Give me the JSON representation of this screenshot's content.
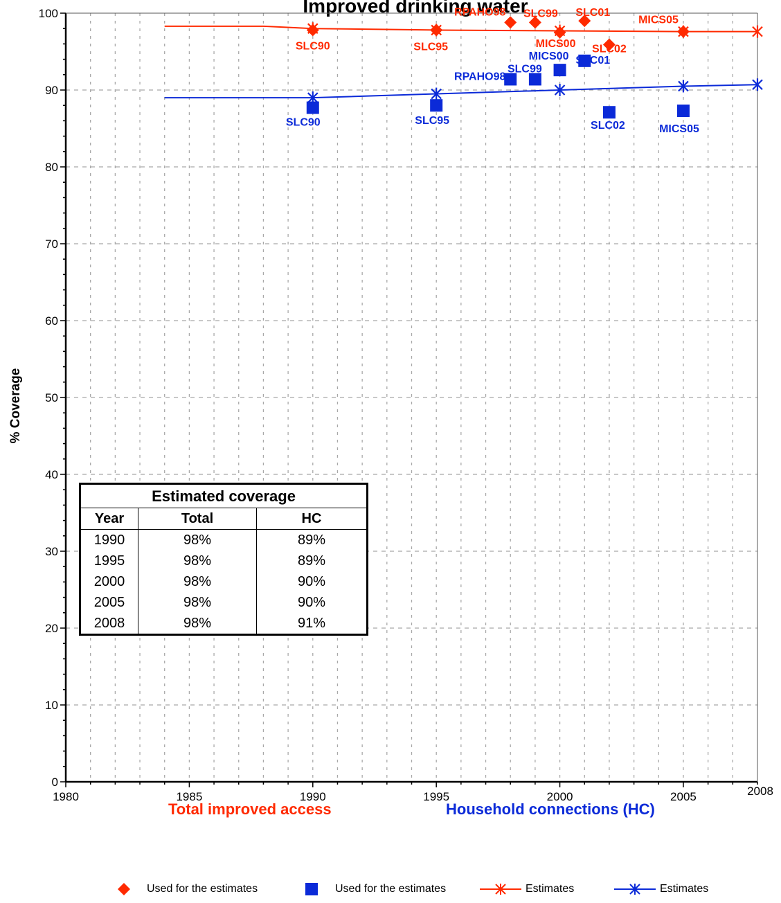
{
  "chart_data": {
    "type": "scatter",
    "title": "Improved drinking water",
    "xlabel": "",
    "ylabel": "% Coverage",
    "xlim": [
      1980,
      2008
    ],
    "ylim": [
      0,
      100
    ],
    "x_ticks": [
      "1980",
      "1985",
      "1990",
      "1995",
      "2000",
      "2005",
      "2008"
    ],
    "y_ticks": [
      "0",
      "10",
      "20",
      "30",
      "40",
      "50",
      "60",
      "70",
      "80",
      "90",
      "100"
    ],
    "grid": true,
    "colors": {
      "total": "#ff2a00",
      "hc": "#0b2ad8"
    },
    "series": [
      {
        "name": "Used for the estimates",
        "group": "total",
        "marker": "diamond",
        "points": [
          {
            "x": 1990,
            "y": 97.8,
            "label": "SLC90"
          },
          {
            "x": 1995,
            "y": 97.8,
            "label": "SLC95"
          },
          {
            "x": 1998,
            "y": 98.8,
            "label": "RPAHO98"
          },
          {
            "x": 1999,
            "y": 98.8,
            "label": "SLC99"
          },
          {
            "x": 2000,
            "y": 97.5,
            "label": "MICS00"
          },
          {
            "x": 2001,
            "y": 99.0,
            "label": "SLC01"
          },
          {
            "x": 2002,
            "y": 95.9,
            "label": "SLC02"
          },
          {
            "x": 2005,
            "y": 97.6,
            "label": "MICS05"
          }
        ]
      },
      {
        "name": "Used for the estimates",
        "group": "hc",
        "marker": "square",
        "points": [
          {
            "x": 1990,
            "y": 87.7,
            "label": "SLC90"
          },
          {
            "x": 1995,
            "y": 88.0,
            "label": "SLC95"
          },
          {
            "x": 1998,
            "y": 91.4,
            "label": "RPAHO98"
          },
          {
            "x": 1999,
            "y": 91.4,
            "label": "SLC99"
          },
          {
            "x": 2000,
            "y": 92.6,
            "label": "MICS00"
          },
          {
            "x": 2001,
            "y": 93.8,
            "label": "SLC01"
          },
          {
            "x": 2002,
            "y": 87.1,
            "label": "SLC02"
          },
          {
            "x": 2005,
            "y": 87.3,
            "label": "MICS05"
          }
        ]
      },
      {
        "name": "Estimates",
        "group": "total",
        "marker": "asterisk",
        "line": [
          [
            1984,
            98.3
          ],
          [
            1988,
            98.3
          ],
          [
            1990,
            98.0
          ],
          [
            1995,
            97.8
          ],
          [
            2000,
            97.7
          ],
          [
            2005,
            97.6
          ],
          [
            2008,
            97.6
          ]
        ],
        "points": [
          {
            "x": 1990,
            "y": 98.0
          },
          {
            "x": 1995,
            "y": 97.8
          },
          {
            "x": 2000,
            "y": 97.7
          },
          {
            "x": 2005,
            "y": 97.6
          },
          {
            "x": 2008,
            "y": 97.6
          }
        ]
      },
      {
        "name": "Estimates",
        "group": "hc",
        "marker": "asterisk",
        "line": [
          [
            1984,
            89.0
          ],
          [
            1990,
            89.0
          ],
          [
            1995,
            89.5
          ],
          [
            2000,
            90.0
          ],
          [
            2005,
            90.5
          ],
          [
            2008,
            90.7
          ]
        ],
        "points": [
          {
            "x": 1990,
            "y": 89.0
          },
          {
            "x": 1995,
            "y": 89.5
          },
          {
            "x": 2000,
            "y": 90.0
          },
          {
            "x": 2005,
            "y": 90.5
          },
          {
            "x": 2008,
            "y": 90.7
          }
        ]
      }
    ]
  },
  "series_titles": {
    "total": "Total improved access",
    "hc": "Household connections (HC)"
  },
  "table": {
    "caption": "Estimated coverage",
    "headers": [
      "Year",
      "Total",
      "HC"
    ],
    "rows": [
      [
        "1990",
        "98%",
        "89%"
      ],
      [
        "1995",
        "98%",
        "89%"
      ],
      [
        "2000",
        "98%",
        "90%"
      ],
      [
        "2005",
        "98%",
        "90%"
      ],
      [
        "2008",
        "98%",
        "91%"
      ]
    ]
  },
  "legend": [
    {
      "label": "Used for the estimates",
      "marker": "diamond",
      "group": "total"
    },
    {
      "label": "Used for the estimates",
      "marker": "square",
      "group": "hc"
    },
    {
      "label": "Estimates",
      "marker": "asterisk-line",
      "group": "total"
    },
    {
      "label": "Estimates",
      "marker": "asterisk-line",
      "group": "hc"
    }
  ]
}
